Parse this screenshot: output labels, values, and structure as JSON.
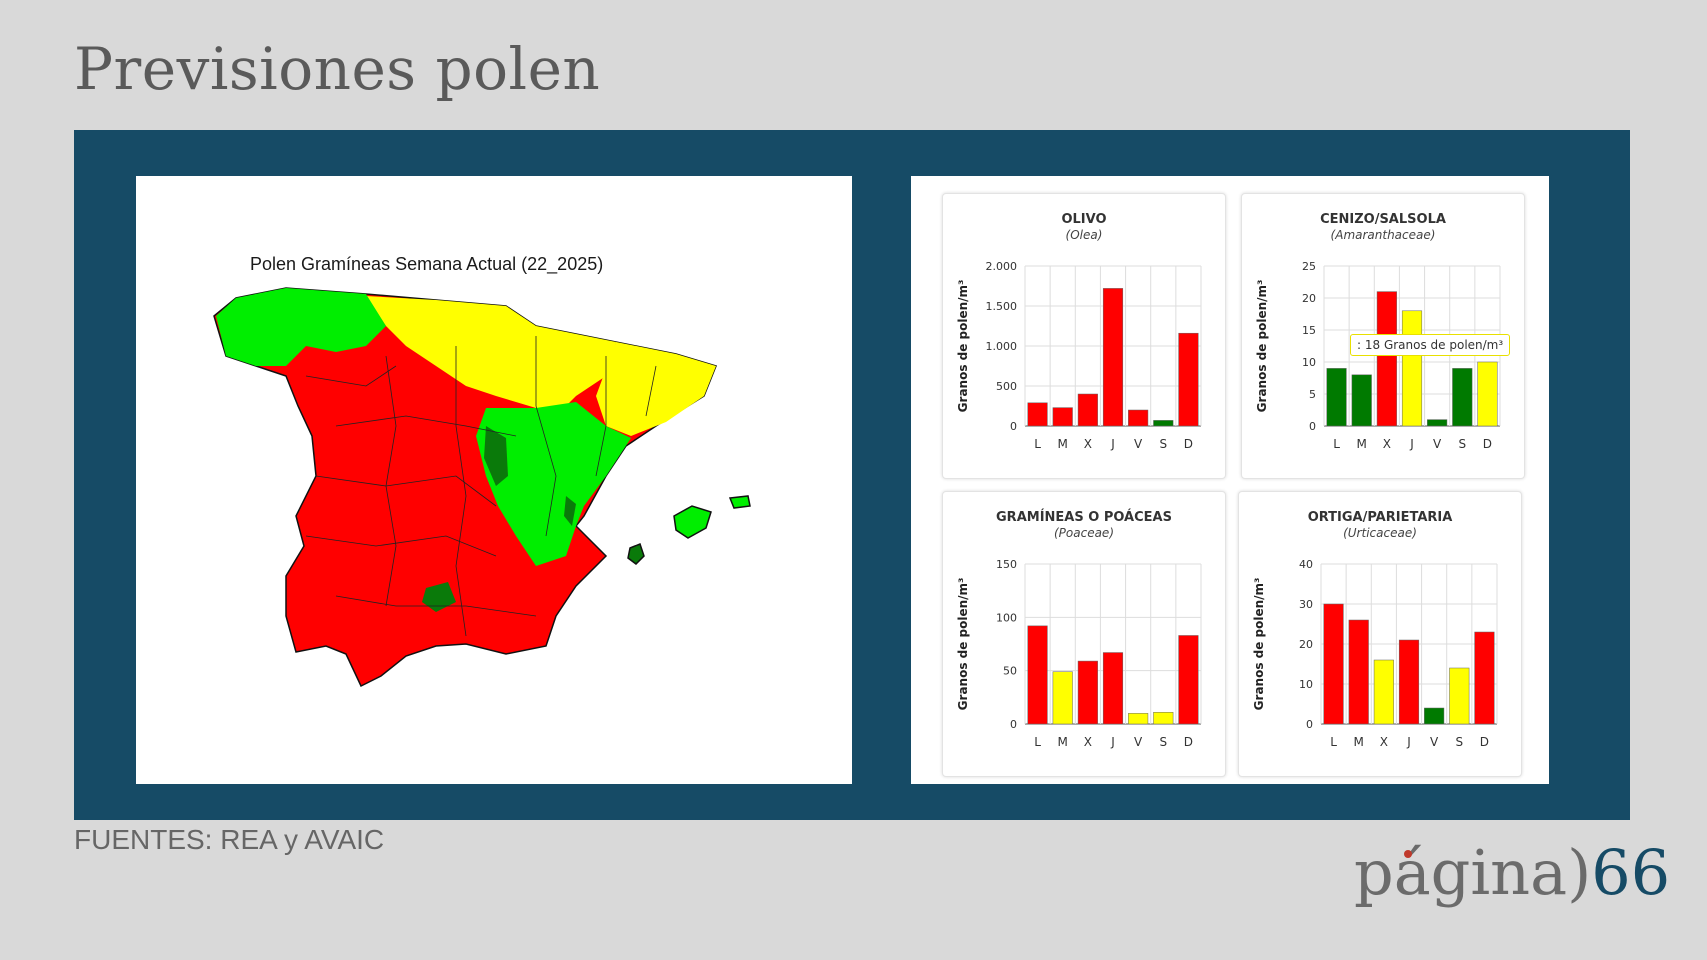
{
  "page": {
    "title": "Previsiones polen",
    "sources": "FUENTES: REA y AVAIC",
    "logo_text": "página)",
    "logo_number": "66"
  },
  "map": {
    "title": "Polen Gramíneas Semana Actual (22_2025)",
    "colors": {
      "high": "#ff0000",
      "medium": "#ffff00",
      "low": "#00ee00",
      "low_dark": "#0a7a0a"
    }
  },
  "chart_data": [
    {
      "type": "bar",
      "title": "OLIVO",
      "subtitle": "(Olea)",
      "ylabel": "Granos de polen/m³",
      "categories": [
        "L",
        "M",
        "X",
        "J",
        "V",
        "S",
        "D"
      ],
      "values": [
        290,
        230,
        400,
        1720,
        200,
        70,
        1160
      ],
      "colors": [
        "#ff0000",
        "#ff0000",
        "#ff0000",
        "#ff0000",
        "#ff0000",
        "#007a00",
        "#ff0000"
      ],
      "ylim": [
        0,
        2000
      ],
      "yticks": [
        0,
        500,
        1000,
        1500,
        2000
      ],
      "ytick_labels": [
        "0",
        "500",
        "1.000",
        "1.500",
        "2.000"
      ],
      "grid": true
    },
    {
      "type": "bar",
      "title": "CENIZO/SALSOLA",
      "subtitle": "(Amaranthaceae)",
      "ylabel": "Granos de polen/m³",
      "categories": [
        "L",
        "M",
        "X",
        "J",
        "V",
        "S",
        "D"
      ],
      "values": [
        9,
        8,
        21,
        18,
        1,
        9,
        10
      ],
      "colors": [
        "#007a00",
        "#007a00",
        "#ff0000",
        "#ffff00",
        "#007a00",
        "#007a00",
        "#ffff00"
      ],
      "ylim": [
        0,
        25
      ],
      "yticks": [
        0,
        5,
        10,
        15,
        20,
        25
      ],
      "ytick_labels": [
        "0",
        "5",
        "10",
        "15",
        "20",
        "25"
      ],
      "grid": true,
      "tooltip": ": 18 Granos de polen/m³"
    },
    {
      "type": "bar",
      "title": "GRAMÍNEAS O POÁCEAS",
      "subtitle": "(Poaceae)",
      "ylabel": "Granos de polen/m³",
      "categories": [
        "L",
        "M",
        "X",
        "J",
        "V",
        "S",
        "D"
      ],
      "values": [
        92,
        49,
        59,
        67,
        10,
        11,
        83
      ],
      "colors": [
        "#ff0000",
        "#ffff00",
        "#ff0000",
        "#ff0000",
        "#ffff00",
        "#ffff00",
        "#ff0000"
      ],
      "ylim": [
        0,
        150
      ],
      "yticks": [
        0,
        50,
        100,
        150
      ],
      "ytick_labels": [
        "0",
        "50",
        "100",
        "150"
      ],
      "grid": true
    },
    {
      "type": "bar",
      "title": "ORTIGA/PARIETARIA",
      "subtitle": "(Urticaceae)",
      "ylabel": "Granos de polen/m³",
      "categories": [
        "L",
        "M",
        "X",
        "J",
        "V",
        "S",
        "D"
      ],
      "values": [
        30,
        26,
        16,
        21,
        4,
        14,
        23
      ],
      "colors": [
        "#ff0000",
        "#ff0000",
        "#ffff00",
        "#ff0000",
        "#007a00",
        "#ffff00",
        "#ff0000"
      ],
      "ylim": [
        0,
        40
      ],
      "yticks": [
        0,
        10,
        20,
        30,
        40
      ],
      "ytick_labels": [
        "0",
        "10",
        "20",
        "30",
        "40"
      ],
      "grid": true
    }
  ]
}
